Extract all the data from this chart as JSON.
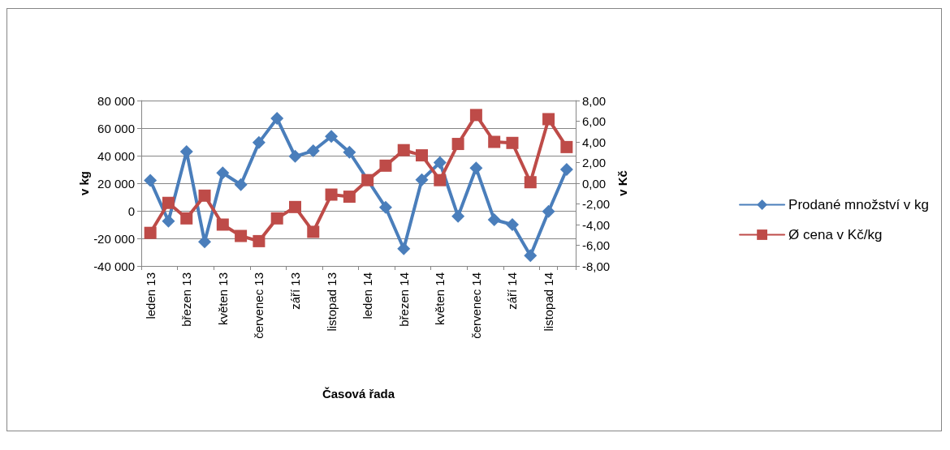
{
  "chart_data": {
    "type": "line",
    "xlabel": "Časová řada",
    "ylabel": "v kg",
    "y2label": "v Kč",
    "categories": [
      "leden 13",
      null,
      "březen 13",
      null,
      "květen 13",
      null,
      "červenec 13",
      null,
      "září 13",
      null,
      "listopad 13",
      null,
      "leden 14",
      null,
      "březen 14",
      null,
      "květen 14",
      null,
      "červenec 14",
      null,
      "září 14",
      null,
      "listopad 14",
      null
    ],
    "series": [
      {
        "name": "Prodané množství v kg",
        "color": "#4a7ebb",
        "marker": "diamond",
        "values": [
          22000,
          -7500,
          43000,
          -22500,
          27500,
          19000,
          49500,
          67000,
          39500,
          43500,
          54000,
          42500,
          null,
          2500,
          -27500,
          22500,
          35000,
          -4000,
          31000,
          -6500,
          -10000,
          -32500,
          -500,
          30000
        ]
      },
      {
        "name": "Ø cena v Kč/kg",
        "color": "#be4b48",
        "marker": "square",
        "axis": "y2",
        "values": [
          -4.8,
          -1.9,
          -3.4,
          -1.2,
          -4.0,
          -5.1,
          -5.6,
          -3.4,
          -2.3,
          -4.7,
          -1.1,
          -1.3,
          0.3,
          1.7,
          3.2,
          2.7,
          0.3,
          3.8,
          6.6,
          4.0,
          3.9,
          0.1,
          6.2,
          3.5
        ]
      }
    ],
    "ylim": [
      -40000,
      80000
    ],
    "yticks": [
      {
        "value": -40000,
        "label": "-40 000"
      },
      {
        "value": -20000,
        "label": "-20 000"
      },
      0,
      {
        "value": 20000,
        "label": "20 000"
      },
      {
        "value": 40000,
        "label": "40 000"
      },
      {
        "value": 60000,
        "label": "60 000"
      },
      {
        "value": 80000,
        "label": "80 000"
      }
    ],
    "y2lim": [
      -8,
      8
    ],
    "y2ticks": [
      {
        "value": -8,
        "label": "-8,00"
      },
      {
        "value": -6,
        "label": "-6,00"
      },
      {
        "value": -4,
        "label": "-4,00"
      },
      {
        "value": -2,
        "label": "-2,00"
      },
      {
        "value": 0,
        "label": "0,00"
      },
      {
        "value": 2,
        "label": "2,00"
      },
      {
        "value": 4,
        "label": "4,00"
      },
      {
        "value": 6,
        "label": "6,00"
      },
      {
        "value": 8,
        "label": "8,00"
      }
    ],
    "grid": "y",
    "legend": "right",
    "line_style": "solid"
  }
}
